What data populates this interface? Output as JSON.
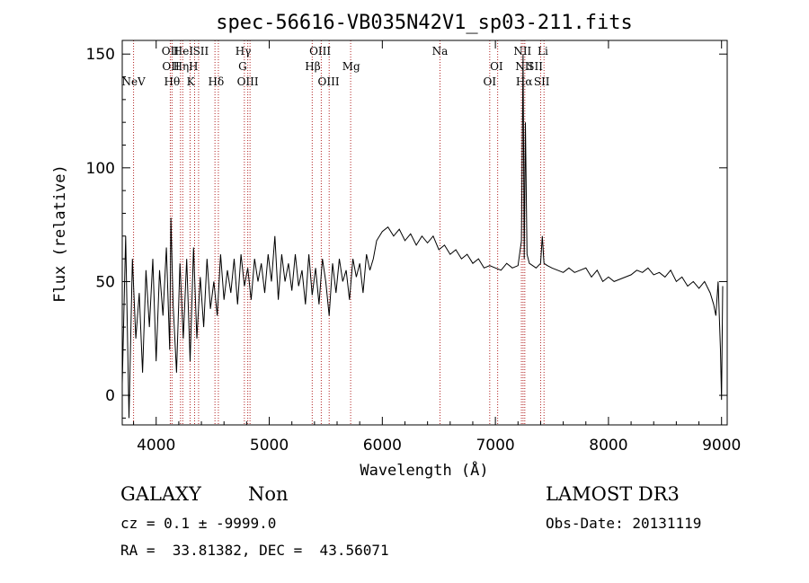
{
  "chart_data": {
    "type": "line",
    "title": "spec-56616-VB035N42V1_sp03-211.fits",
    "xlabel": "Wavelength (Å)",
    "ylabel": "Flux (relative)",
    "xlim": [
      3700,
      9050
    ],
    "ylim": [
      -13,
      156
    ],
    "xticks": [
      4000,
      5000,
      6000,
      7000,
      8000,
      9000
    ],
    "yticks": [
      0,
      50,
      100,
      150
    ],
    "grid": false,
    "series_color": "#000000",
    "line_marker_color": "#b22222",
    "spectral_lines": [
      {
        "label": "NeV",
        "x": 3800,
        "row": 2
      },
      {
        "label": "OII",
        "x": 4125,
        "row": 0
      },
      {
        "label": "OII",
        "x": 4130,
        "row": 1
      },
      {
        "label": "Hθ",
        "x": 4140,
        "row": 2
      },
      {
        "label": "Hη",
        "x": 4220,
        "row": 1
      },
      {
        "label": "HeI",
        "x": 4240,
        "row": 0
      },
      {
        "label": "H",
        "x": 4330,
        "row": 1
      },
      {
        "label": "K",
        "x": 4305,
        "row": 2
      },
      {
        "label": "SII",
        "x": 4395,
        "row": 0
      },
      {
        "label": "Hδ",
        "x": 4530,
        "row": 2
      },
      {
        "label": "Hγ",
        "x": 4770,
        "row": 0
      },
      {
        "label": "G",
        "x": 4765,
        "row": 1
      },
      {
        "label": "OIII",
        "x": 4810,
        "row": 2
      },
      {
        "label": "Hβ",
        "x": 5385,
        "row": 1
      },
      {
        "label": "OIII",
        "x": 5450,
        "row": 0
      },
      {
        "label": "OIII",
        "x": 5525,
        "row": 2
      },
      {
        "label": "Mg",
        "x": 5725,
        "row": 1
      },
      {
        "label": "Na",
        "x": 6510,
        "row": 0
      },
      {
        "label": "OI",
        "x": 7010,
        "row": 1
      },
      {
        "label": "OI",
        "x": 6950,
        "row": 2
      },
      {
        "label": "NII",
        "x": 7240,
        "row": 0
      },
      {
        "label": "NII",
        "x": 7255,
        "row": 1
      },
      {
        "label": "Hα",
        "x": 7255,
        "row": 2
      },
      {
        "label": "SII",
        "x": 7350,
        "row": 1
      },
      {
        "label": "SII",
        "x": 7410,
        "row": 2
      },
      {
        "label": "Li",
        "x": 7420,
        "row": 0
      }
    ],
    "marker_lines": [
      3800,
      4125,
      4140,
      4215,
      4235,
      4300,
      4340,
      4375,
      4520,
      4550,
      4780,
      4810,
      4830,
      5380,
      5460,
      5530,
      5720,
      6510,
      6950,
      7020,
      7230,
      7245,
      7260,
      7400,
      7430
    ],
    "spectrum": {
      "x": [
        3700,
        3730,
        3760,
        3790,
        3820,
        3850,
        3880,
        3910,
        3940,
        3970,
        4000,
        4030,
        4060,
        4090,
        4120,
        4130,
        4150,
        4180,
        4210,
        4240,
        4270,
        4300,
        4330,
        4360,
        4390,
        4420,
        4450,
        4480,
        4510,
        4540,
        4570,
        4600,
        4630,
        4660,
        4690,
        4720,
        4750,
        4780,
        4810,
        4840,
        4870,
        4900,
        4930,
        4960,
        4990,
        5020,
        5050,
        5080,
        5110,
        5140,
        5170,
        5200,
        5230,
        5260,
        5290,
        5320,
        5350,
        5380,
        5410,
        5440,
        5470,
        5500,
        5530,
        5560,
        5590,
        5620,
        5650,
        5680,
        5710,
        5740,
        5770,
        5800,
        5830,
        5860,
        5890,
        5920,
        5950,
        6000,
        6050,
        6100,
        6150,
        6200,
        6250,
        6300,
        6350,
        6400,
        6450,
        6500,
        6550,
        6600,
        6650,
        6700,
        6750,
        6800,
        6850,
        6900,
        6950,
        7000,
        7050,
        7100,
        7150,
        7200,
        7230,
        7245,
        7255,
        7265,
        7280,
        7300,
        7330,
        7360,
        7400,
        7415,
        7430,
        7460,
        7500,
        7550,
        7600,
        7650,
        7700,
        7750,
        7800,
        7850,
        7900,
        7950,
        8000,
        8050,
        8100,
        8150,
        8200,
        8250,
        8300,
        8350,
        8400,
        8450,
        8500,
        8550,
        8600,
        8650,
        8700,
        8750,
        8800,
        8850,
        8900,
        8930,
        8950,
        8970,
        8990,
        9000,
        9010
      ],
      "y": [
        5,
        70,
        -10,
        60,
        25,
        45,
        10,
        55,
        30,
        60,
        15,
        55,
        35,
        65,
        20,
        78,
        40,
        10,
        58,
        25,
        60,
        15,
        65,
        25,
        52,
        30,
        60,
        38,
        50,
        35,
        62,
        42,
        55,
        45,
        60,
        40,
        62,
        48,
        56,
        42,
        60,
        50,
        58,
        45,
        62,
        50,
        70,
        42,
        62,
        50,
        58,
        46,
        62,
        48,
        55,
        40,
        62,
        44,
        56,
        40,
        60,
        50,
        35,
        58,
        45,
        60,
        50,
        55,
        42,
        60,
        52,
        58,
        45,
        62,
        55,
        60,
        68,
        72,
        74,
        70,
        73,
        68,
        71,
        66,
        70,
        67,
        70,
        64,
        66,
        62,
        64,
        60,
        62,
        58,
        60,
        56,
        57,
        56,
        55,
        58,
        56,
        57,
        68,
        150,
        60,
        120,
        62,
        58,
        57,
        56,
        58,
        70,
        58,
        57,
        56,
        55,
        54,
        56,
        54,
        55,
        56,
        52,
        55,
        50,
        52,
        50,
        51,
        52,
        53,
        55,
        54,
        56,
        53,
        54,
        52,
        55,
        50,
        52,
        48,
        50,
        47,
        50,
        45,
        40,
        35,
        50,
        20,
        -2,
        48
      ]
    }
  },
  "info": {
    "object_type": "GALAXY",
    "subclass": "Non",
    "cz_line": "cz = 0.1 ± -9999.0",
    "radec_line": "RA =  33.81382, DEC =  43.56071",
    "survey": "LAMOST DR3",
    "obs_date_line": "Obs-Date: 20131119"
  }
}
